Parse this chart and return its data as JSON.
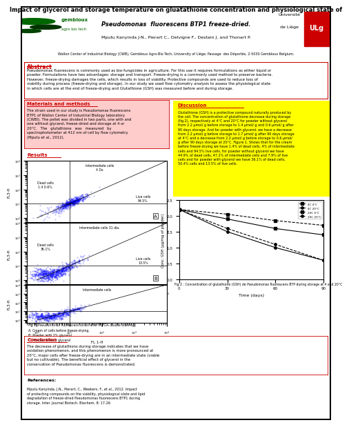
{
  "title_line1": "Impact of glycerol and storage temperature on gluatathione concentration and physiological state of",
  "title_line2": "Pseudomonas  fluorescens BTP1 freeze-dried.",
  "authors": "Mputu Kanyinda J-N., Pierart C., Delvigne F., Destain J. and Thonart P.",
  "affiliation": "Wallon Center of Industrial Biology (CWB), Gembloux Agro-Bio Tech, University of Liège, Passage  des Déportés, 2-5030 Gembloux Belgium.",
  "abstract_title": "Abstract",
  "abstract_text": "Pseudomonas fluorescens is commonly used as bio-fungicides in agriculture. For this use it requires formulations as either liquid or\npowder. Formulations have two advantages: storage and transport. Freeze-drying is a commonly used method to preserve bacteria.\nHowever, freeze-drying damages the cells, which results in loss of viability. Protective compounds are used to reduce loss of\nviability during process (freeze-drying and storage). In our study we used flow cytometry analysis to assess the physiological state\nin which cells are at the end of freeze-drying and Glutathione (GSH) was measured before and during storage.",
  "materials_title": "Materials and methods",
  "materials_text": "The strain used in our study is Pseudomonas fluorescens\nBTP1 of Wallon Center of Industrial Biology laboratory\n(CWBI). The pellet was divided in two parts, one with and\none without glycerol, freeze-dried and storage at 4 or\n20°C.   The   glutathione   was   measured   by\nspectrophotometer at 412 nm of cell by flow cytometry\n(Mputu et al., 2012).",
  "results_title": "Results",
  "discussion_title": "Discussion",
  "discussion_text": "Glutathione (GSH) is a protective compound naturally produced by\nthe cell. The concentration of glutathione decrease during storage\n(fig.2), respectively at 4°C and 20°C for powder without glycerol\nfrom 2.2 µmol/ g before storage to 1.4 µmol/ g and 0.6 µmol/ g after\n90 days storage. And for powder with glycerol, we have a decrease\nfrom 2.2 µmol/ g before storage to 1.7 µmol/ g after 90 days storage\nat 4°C and a decrease from 2.2 µmol/ g before storage to 0.6 µmol/\ng after 90 days storage at 20°C. Figure 1. Shows that for the cream\nbefore freeze-drying we have 1.4% of dead cells, 4% of intermediate\ncells and 94.5% live cells, for powder without glycerol we have\n44.9% of dead cells, 47.2% of intermediate cells and 7.9% of live\ncells and for powder with glycerol we have 36.1% of dead cells,\n50.4% cells and 13.5% of live cells.",
  "conclusion_title": "Conclusion",
  "conclusion_text": "The decrease of glutathions during storage indicates that we have\noxidation phenomenon, and this phenomenon is more pronounced at\n20°C, major cells after freeze-drying are in an intermediate state (viable\nbut no cultivable). The beneficial effect of glycerol in the\nconservation of Pseudomonas fluorescens is demonstrated.",
  "references_title": "References:",
  "references_text": "Mputu Kanyinda, J.N., Pierart, C., Weekers, F., et al., 2012. Impact\nof protecting compounds on the viability, physiological state and lipid\ndegradation of freeze-dried Pseudomonas fluorescens BTP1 during\nstorage. Inter. Journal Biotech. Biochem. 8: 17-26",
  "fig2_caption": "Fig 2 : Concentration of glutathione (GSH) de Pseudomonas fluorescens BTP during storage at 4 and 20°C",
  "legend_A": "A: Cream of cells before freeze-drying.",
  "legend_B": "B: Powder with 2% glycerol",
  "legend_C": "C: Powder without glycerol",
  "fig1_label": "Fig 1: Pseudomonas fluorescens strain after PI/FDA double staining",
  "gsh_days": [
    0,
    30,
    60,
    90
  ],
  "gsh_4c_noglycero": [
    2.2,
    1.9,
    1.6,
    1.4
  ],
  "gsh_20c_noglycero": [
    2.2,
    1.5,
    1.0,
    0.6
  ],
  "gsh_4c_glycerol": [
    2.2,
    2.05,
    1.85,
    1.7
  ],
  "gsh_20c_glycerol": [
    2.2,
    1.6,
    1.1,
    0.6
  ],
  "bg_color": "#FFFFFF",
  "abstract_border": "#CC0000",
  "materials_bg": "#FFCCCC",
  "discussion_bg": "#FFFF00",
  "conclusion_border": "#CC0000",
  "section_title_color": "#CC0000",
  "gembloux_color": "#006600",
  "legend_labels": [
    "4C 4°C",
    "4C 20°C",
    "20C 4°C",
    "20C 20°C"
  ]
}
